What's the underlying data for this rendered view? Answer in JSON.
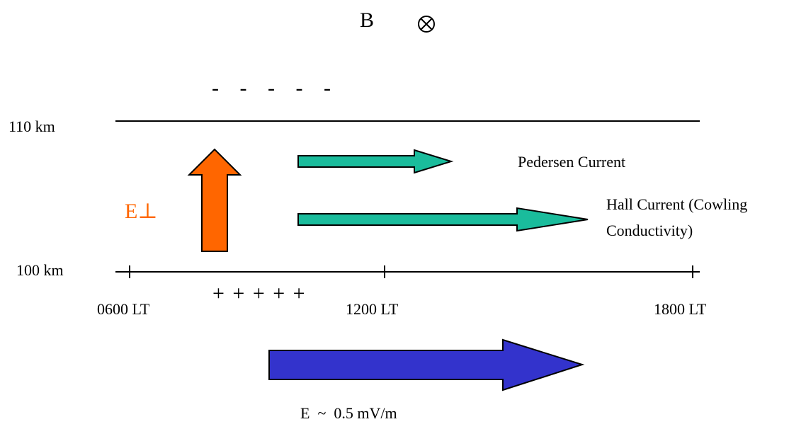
{
  "magnetic_field": {
    "label": "B",
    "symbol": "⊗",
    "icon": "cross-in-circle-icon"
  },
  "charges": {
    "top": "- - - - -",
    "bottom": "+ + + + +"
  },
  "altitudes": {
    "upper": "110 km",
    "lower": "100 km"
  },
  "time_axis": {
    "ticks": [
      "0600 LT",
      "1200 LT",
      "1800 LT"
    ]
  },
  "electric_field": {
    "perpendicular_label": "E⊥",
    "zonal_label": "E  ~  0.5 mV/m"
  },
  "currents": {
    "pedersen": "Pedersen Current",
    "hall_line1": "Hall Current (Cowling",
    "hall_line2": "Conductivity)"
  },
  "colors": {
    "e_perp_arrow": "#ff6600",
    "e_perp_label": "#ff6600",
    "current_arrows": "#1abc9c",
    "e_field_arrow": "#3333cc"
  }
}
